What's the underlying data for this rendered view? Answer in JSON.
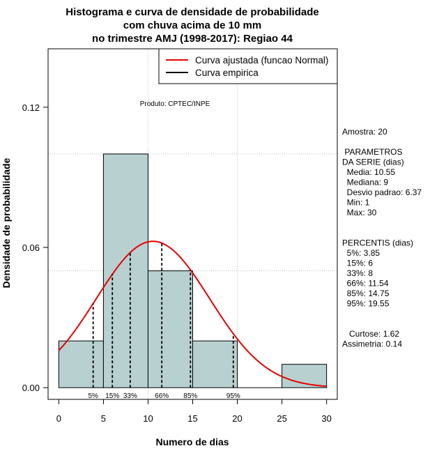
{
  "chart_data": {
    "type": "bar",
    "title_lines": [
      "Histograma e curva de densidade de probabilidade",
      "com chuva acima de 10 mm",
      "no trimestre AMJ (1998-2017): Regiao 44"
    ],
    "xlabel": "Numero de dias",
    "ylabel": "Densidade de probabilidade",
    "xlim": [
      -1.2,
      31.2
    ],
    "ylim": [
      -0.005,
      0.145
    ],
    "x_ticks": [
      0,
      5,
      10,
      15,
      20,
      25,
      30
    ],
    "x_tick_labels": [
      "0",
      "5",
      "10",
      "15",
      "20",
      "25",
      "30"
    ],
    "y_ticks": [
      0.0,
      0.06,
      0.12
    ],
    "y_tick_labels": [
      "0.00",
      "0.06",
      "0.12"
    ],
    "grid_x": [
      10,
      20
    ],
    "grid_y": [
      0.05,
      0.1
    ],
    "bins": [
      {
        "start": 0,
        "end": 5,
        "density": 0.02
      },
      {
        "start": 5,
        "end": 10,
        "density": 0.1
      },
      {
        "start": 10,
        "end": 15,
        "density": 0.05
      },
      {
        "start": 15,
        "end": 20,
        "density": 0.02
      },
      {
        "start": 20,
        "end": 25,
        "density": 0.0
      },
      {
        "start": 25,
        "end": 30,
        "density": 0.01
      }
    ],
    "normal_fit": {
      "mean": 10.55,
      "sd": 6.37,
      "x_range": [
        0,
        30
      ]
    },
    "percentiles": [
      {
        "label": "5%",
        "value": 3.85
      },
      {
        "label": "15%",
        "value": 6
      },
      {
        "label": "33%",
        "value": 8
      },
      {
        "label": "66%",
        "value": 11.54
      },
      {
        "label": "85%",
        "value": 14.75
      },
      {
        "label": "95%",
        "value": 19.55
      }
    ],
    "credit": "Produto: CPTEC/INPE",
    "legend": [
      {
        "label": "Curva ajustada (funcao Normal)",
        "color": "#e60000"
      },
      {
        "label": "Curva empirica",
        "color": "#000000"
      }
    ],
    "legend_position": "top-right",
    "bar_fill": "#b8d0d0",
    "curve_color": "#e60000"
  },
  "side_panel": {
    "lines": [
      "Amostra: 20",
      "",
      " PARAMETROS",
      "DA SERIE (dias)",
      "  Media: 10.55",
      "  Mediana: 9",
      "  Desvio padrao: 6.37",
      "  Min: 1",
      "  Max: 30",
      "",
      "",
      "PERCENTIS (dias)",
      "  5%: 3.85",
      "  15%: 6",
      "  33%: 8",
      "  66%: 11.54",
      "  85%: 14.75",
      "  95%: 19.55",
      "",
      "",
      "   Curtose: 1.62",
      "Assimetria: 0.14"
    ]
  }
}
